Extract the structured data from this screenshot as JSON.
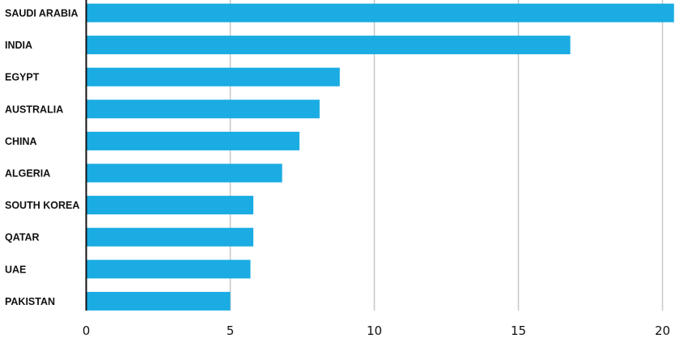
{
  "chart_data": {
    "type": "bar",
    "orientation": "horizontal",
    "categories": [
      "SAUDI ARABIA",
      "INDIA",
      "EGYPT",
      "AUSTRALIA",
      "CHINA",
      "ALGERIA",
      "SOUTH KOREA",
      "QATAR",
      "UAE",
      "PAKISTAN"
    ],
    "values": [
      20.4,
      16.8,
      8.8,
      8.1,
      7.4,
      6.8,
      5.8,
      5.8,
      5.7,
      5.0
    ],
    "xlim": [
      0,
      20
    ],
    "xticks": [
      "0",
      "5",
      "10",
      "15",
      "20"
    ],
    "grid": "vertical",
    "bar_color": "#1aace3",
    "title": "",
    "xlabel": "",
    "ylabel": ""
  }
}
